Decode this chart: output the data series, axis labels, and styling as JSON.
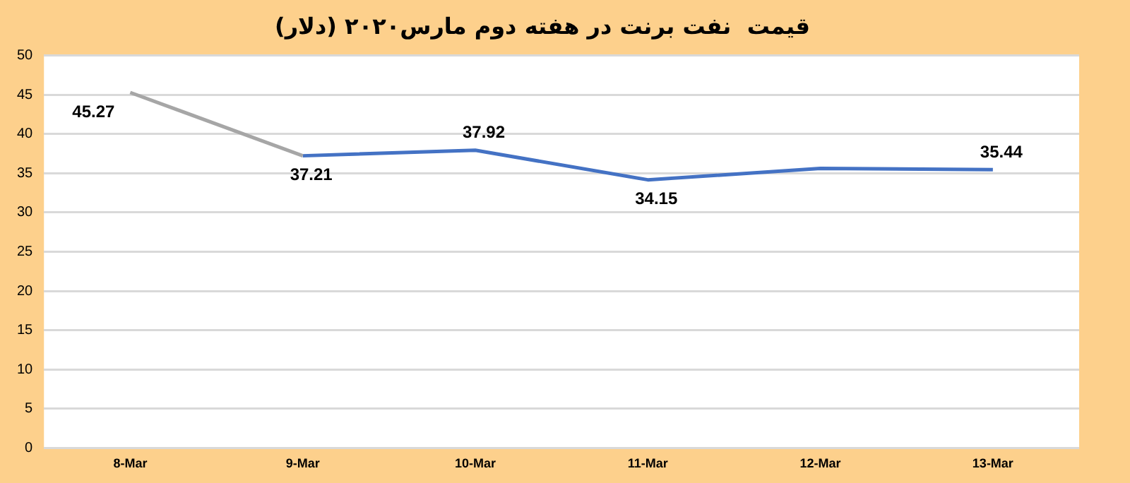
{
  "chart_data": {
    "type": "line",
    "title": "قیمت  نفت برنت در هفته دوم مارس۲۰۲۰ (دلار)",
    "categories": [
      "8-Mar",
      "9-Mar",
      "10-Mar",
      "11-Mar",
      "12-Mar",
      "13-Mar"
    ],
    "series": [
      {
        "color": "#a6a6a6",
        "values": [
          45.27,
          37.21,
          null,
          null,
          null,
          null
        ],
        "value_labels": [
          "45.27",
          null,
          null,
          null,
          null,
          null
        ]
      },
      {
        "color": "#4472c4",
        "values": [
          null,
          37.21,
          37.92,
          34.15,
          35.6,
          35.44
        ],
        "value_labels": [
          null,
          "37.21",
          "37.92",
          "34.15",
          null,
          "35.44"
        ]
      }
    ],
    "ylim": [
      0,
      50
    ],
    "yticks": [
      0,
      5,
      10,
      15,
      20,
      25,
      30,
      35,
      40,
      45,
      50
    ],
    "grid": "y",
    "legend": false,
    "marker": "none",
    "line_style": "solid"
  }
}
